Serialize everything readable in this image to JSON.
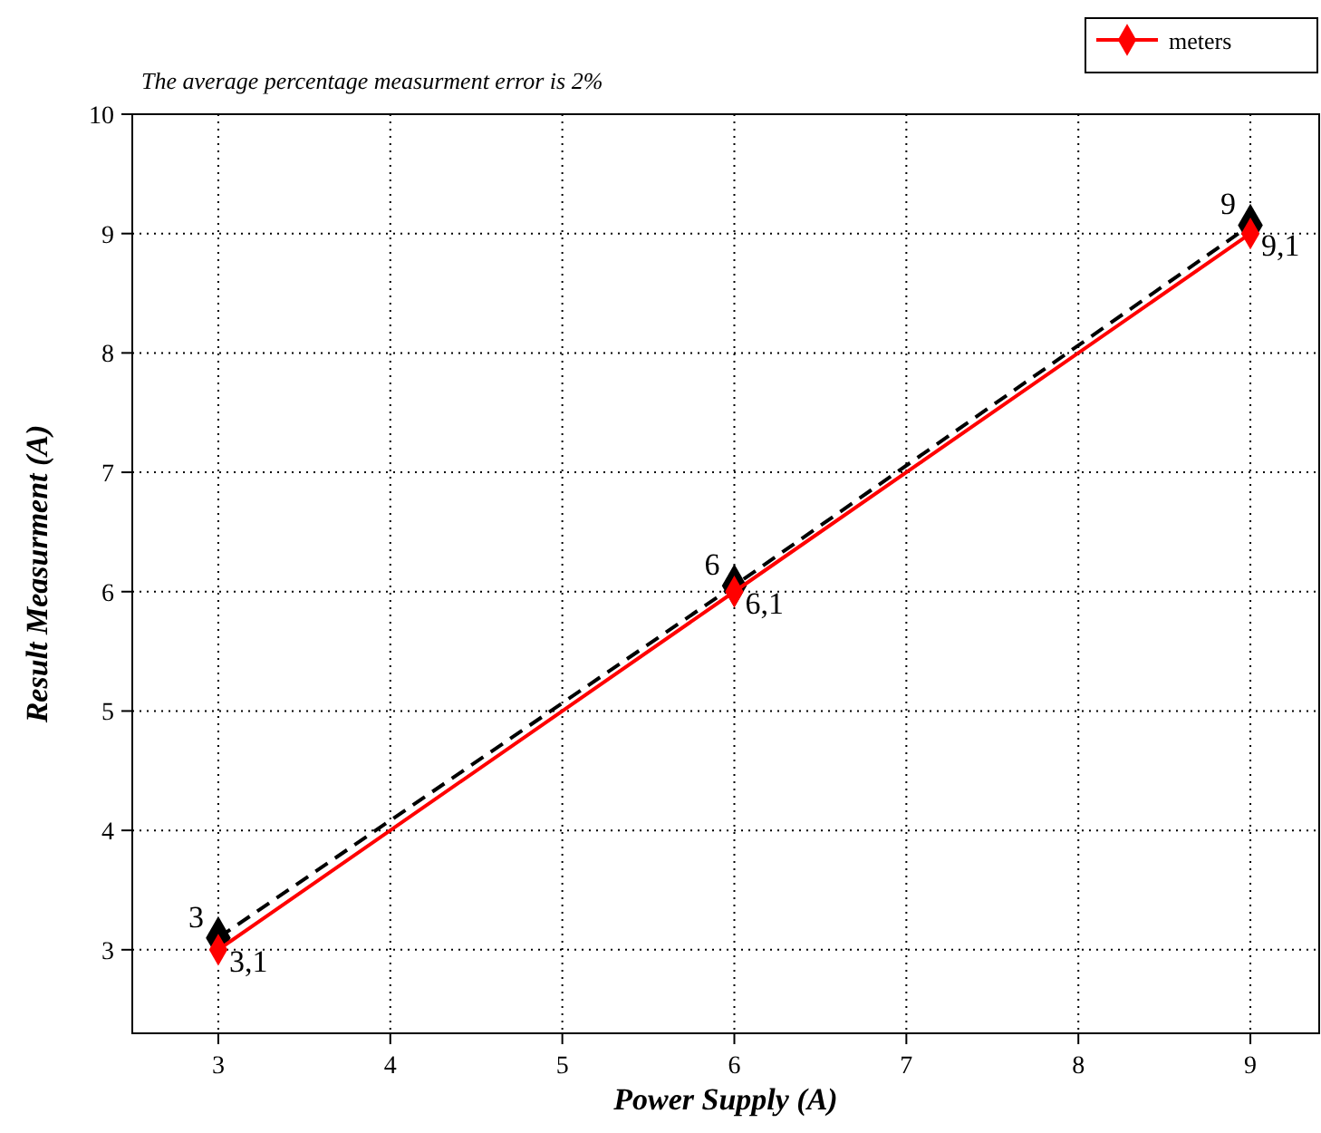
{
  "chart_data": {
    "type": "line",
    "xlabel": "Power Supply (A)",
    "ylabel": "Result Measurment (A)",
    "x": [
      3,
      6,
      9
    ],
    "series": [
      {
        "color": "#000000",
        "values": [
          3.1,
          6.05,
          9.07
        ],
        "line_style": "dashed"
      },
      {
        "name": "meters",
        "color": "#ff0000",
        "values": [
          3,
          6,
          9
        ],
        "line_style": "solid"
      }
    ],
    "xlim": [
      2.5,
      9.4
    ],
    "xticks": [
      3,
      4,
      5,
      6,
      7,
      8,
      9
    ],
    "ylim": [
      2.3,
      10
    ],
    "yticks": [
      3,
      4,
      5,
      6,
      7,
      8,
      9,
      10
    ],
    "grid": true,
    "marker": "diamond",
    "legend": "top right",
    "annotations": [
      "The average percentage measurment error is 2%",
      {
        "text": "3",
        "x": 3,
        "y": 3.1
      },
      {
        "text": "6",
        "x": 6,
        "y": 6.05
      },
      {
        "text": "9",
        "x": 9,
        "y": 9.07
      },
      {
        "text": "3,1",
        "x": 3,
        "y": 3
      },
      {
        "text": "6,1",
        "x": 6,
        "y": 6
      },
      {
        "text": "9,1",
        "x": 9,
        "y": 9
      }
    ]
  }
}
